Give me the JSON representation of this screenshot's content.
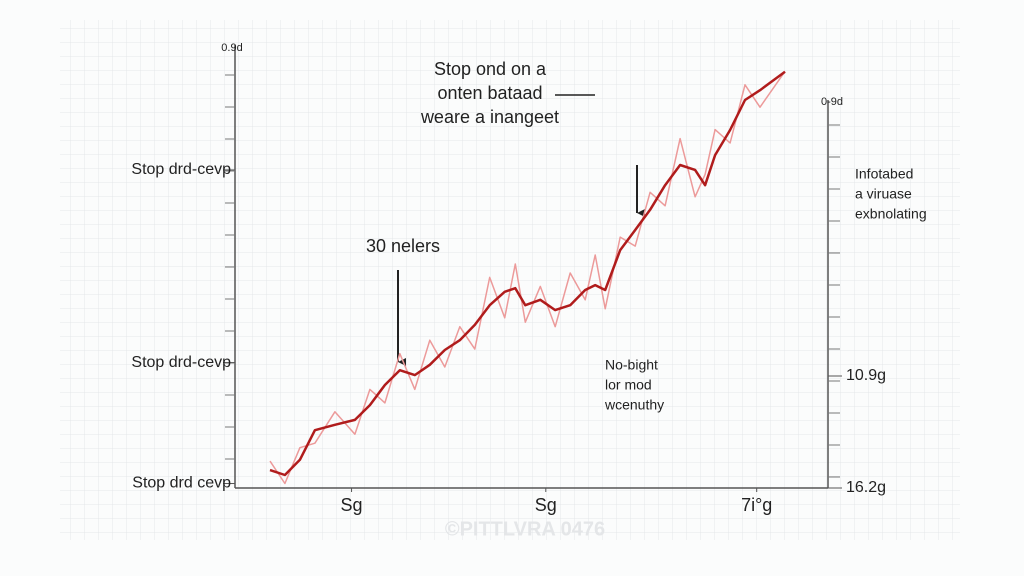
{
  "chart_data": {
    "type": "line",
    "ylabel": "0.9d",
    "y2label": "0-9d",
    "x": [
      6.3,
      9.0,
      11.7,
      14.4,
      18.0,
      21.6,
      24.3,
      27.0,
      29.7,
      32.4,
      35.1,
      37.8,
      40.5,
      43.2,
      45.9,
      48.6,
      50.5,
      52.3,
      55.0,
      57.7,
      60.4,
      63.1,
      64.9,
      66.7,
      69.4,
      72.1,
      74.8,
      77.5,
      80.2,
      82.9,
      84.7,
      86.5,
      89.2,
      91.9,
      94.6,
      99.1
    ],
    "series": [
      {
        "color": "#ec9a9a",
        "values": [
          6,
          1,
          9,
          10,
          17,
          12,
          22,
          19,
          30,
          22,
          33,
          27,
          36,
          31,
          47,
          38,
          50,
          37,
          45,
          36,
          48,
          42,
          52,
          40,
          56,
          54,
          66,
          63,
          78,
          65,
          70,
          80,
          77,
          90,
          85,
          93
        ]
      },
      {
        "color": "#b01c1c",
        "values": [
          4.0,
          2.9,
          6.3,
          12.9,
          14.1,
          15.2,
          18.5,
          23.0,
          26.3,
          25.2,
          27.5,
          30.8,
          33.0,
          36.4,
          40.8,
          43.8,
          44.6,
          40.8,
          42.0,
          39.7,
          40.8,
          44.2,
          45.3,
          44.2,
          53.1,
          57.6,
          62.1,
          67.6,
          72.1,
          71.0,
          67.6,
          74.3,
          79.9,
          86.6,
          88.8,
          92.9
        ]
      }
    ],
    "xlim": [
      0,
      100
    ],
    "xticks": [
      {
        "value": 21,
        "label": "Sg"
      },
      {
        "value": 56,
        "label": "Sg"
      },
      {
        "value": 94,
        "label": "7i°g"
      }
    ],
    "ylim": [
      0,
      100
    ],
    "yticks": [
      {
        "value": 1,
        "label": "Stop drd cevp"
      },
      {
        "value": 28,
        "label": "Stop drd-cevp"
      },
      {
        "value": 71,
        "label": "Stop drd-cevp"
      }
    ],
    "y2lim": [
      0,
      100
    ],
    "y2ticks": [
      {
        "value": 0,
        "label": "16.2g"
      },
      {
        "value": 25,
        "label": "10.9g"
      }
    ],
    "annotations": [
      {
        "lines": [
          "Stop ond on a",
          "onten bataad",
          "weare a inangeet"
        ]
      },
      {
        "lines": [
          "30 nelers"
        ]
      },
      {
        "lines": [
          "Infotabed",
          "a viruase",
          "exbnolating"
        ]
      },
      {
        "lines": [
          "No-bight",
          "lor mod",
          "wcenuthy"
        ]
      }
    ],
    "watermark": "©PITTLVRA 0476"
  }
}
